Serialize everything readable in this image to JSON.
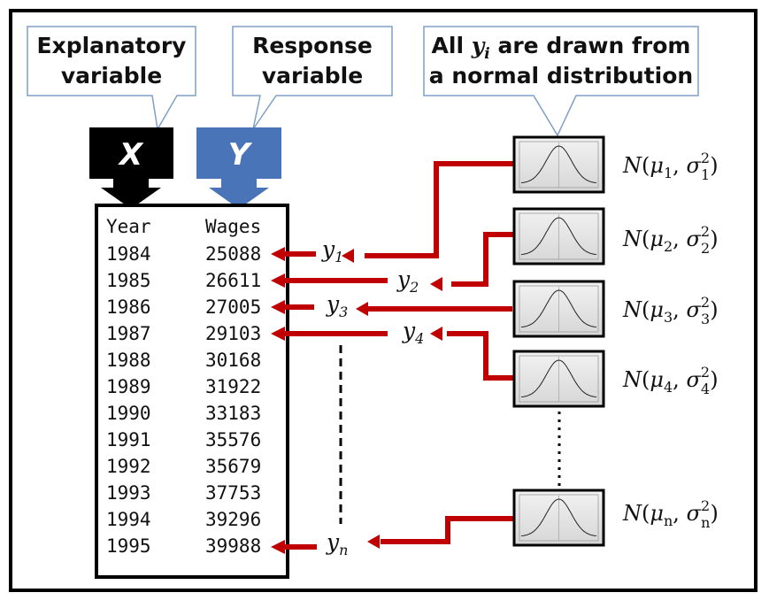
{
  "callouts": {
    "explanatory": [
      "Explanatory",
      "variable"
    ],
    "response": [
      "Response",
      "variable"
    ],
    "normal_line1_prefix": "All",
    "normal_var": "y",
    "normal_sub": "i",
    "normal_line1_suffix": "are drawn from",
    "normal_line2": "a normal distribution"
  },
  "arrows": {
    "x_label": "X",
    "y_label": "Y",
    "x_color": "#000000",
    "y_color": "#4a74b8"
  },
  "table": {
    "header_year": "Year",
    "header_wages": "Wages",
    "rows": [
      {
        "year": "1984",
        "wages": "25088"
      },
      {
        "year": "1985",
        "wages": "26611"
      },
      {
        "year": "1986",
        "wages": "27005"
      },
      {
        "year": "1987",
        "wages": "29103"
      },
      {
        "year": "1988",
        "wages": "30168"
      },
      {
        "year": "1989",
        "wages": "31922"
      },
      {
        "year": "1990",
        "wages": "33183"
      },
      {
        "year": "1991",
        "wages": "35576"
      },
      {
        "year": "1992",
        "wages": "35679"
      },
      {
        "year": "1993",
        "wages": "37753"
      },
      {
        "year": "1994",
        "wages": "39296"
      },
      {
        "year": "1995",
        "wages": "39988"
      }
    ]
  },
  "samples": [
    {
      "var": "y",
      "sub": "1"
    },
    {
      "var": "y",
      "sub": "2"
    },
    {
      "var": "y",
      "sub": "3"
    },
    {
      "var": "y",
      "sub": "4"
    },
    {
      "var": "y",
      "sub": "n"
    }
  ],
  "distributions": [
    {
      "name": "N",
      "mu": "μ",
      "sigma": "σ",
      "sub": "1",
      "sup": "2"
    },
    {
      "name": "N",
      "mu": "μ",
      "sigma": "σ",
      "sub": "2",
      "sup": "2"
    },
    {
      "name": "N",
      "mu": "μ",
      "sigma": "σ",
      "sub": "3",
      "sup": "2"
    },
    {
      "name": "N",
      "mu": "μ",
      "sigma": "σ",
      "sub": "4",
      "sup": "2"
    },
    {
      "name": "N",
      "mu": "μ",
      "sigma": "σ",
      "sub": "n",
      "sup": "2"
    }
  ],
  "colors": {
    "connector_red": "#c00000",
    "callout_border": "#7f9fc6",
    "panel_bg": "#dcdcdc"
  }
}
